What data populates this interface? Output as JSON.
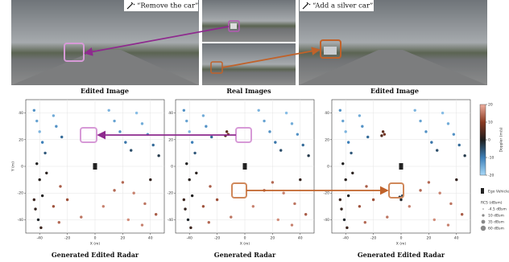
{
  "figure": {
    "prompts": [
      "“Remove the car”",
      "“Add a silver car”"
    ],
    "image_captions": [
      "Edited Image",
      "Real Images",
      "Edited Image"
    ]
  },
  "chart_data": [
    {
      "type": "scatter",
      "caption": "Generated Edited Radar",
      "x_label": "X (m)",
      "y_label": "Y (m)",
      "xlim": [
        -50,
        50
      ],
      "ylim": [
        -50,
        50
      ],
      "xticks": [
        -40,
        -20,
        0,
        20,
        40
      ],
      "yticks": [
        -40,
        -20,
        0,
        20,
        40
      ],
      "grid": true,
      "x": [
        -44,
        -42,
        -40,
        -38,
        -36,
        -30,
        -28,
        -24,
        -42,
        -40,
        -38,
        -43,
        -41,
        -39,
        -30,
        -26,
        10,
        14,
        18,
        22,
        26,
        30,
        34,
        38,
        42,
        46,
        20,
        28,
        36,
        44,
        -20,
        -10,
        6,
        14,
        24,
        34,
        40,
        -35,
        -25,
        -44
      ],
      "y": [
        42,
        34,
        26,
        18,
        10,
        38,
        30,
        22,
        2,
        -10,
        -22,
        -32,
        -40,
        -46,
        -30,
        -42,
        42,
        34,
        26,
        18,
        12,
        40,
        32,
        24,
        16,
        8,
        -12,
        -20,
        -28,
        -36,
        -25,
        -38,
        -30,
        -18,
        -40,
        -44,
        -10,
        -5,
        -15,
        -25
      ],
      "doppler": [
        -12,
        -14,
        -16,
        -10,
        -6,
        -15,
        -12,
        -8,
        0,
        1,
        0,
        2,
        -1,
        3,
        12,
        14,
        -16,
        -14,
        -12,
        -9,
        -5,
        -17,
        -15,
        -12,
        -8,
        -3,
        14,
        16,
        15,
        13,
        12,
        15,
        16,
        14,
        17,
        16,
        2,
        1,
        13,
        3
      ],
      "ego": {
        "x": 0,
        "y": 0
      }
    },
    {
      "type": "scatter",
      "caption": "Generated Radar",
      "x_label": "X (m)",
      "xlim": [
        -50,
        50
      ],
      "ylim": [
        -50,
        50
      ],
      "xticks": [
        -40,
        -20,
        0,
        20,
        40
      ],
      "yticks": [
        -40,
        -20,
        0,
        20,
        40
      ],
      "grid": true,
      "x": [
        -44,
        -42,
        -40,
        -38,
        -36,
        -30,
        -28,
        -24,
        -42,
        -40,
        -38,
        -43,
        -41,
        -39,
        -30,
        -26,
        10,
        14,
        18,
        22,
        26,
        30,
        34,
        38,
        42,
        46,
        20,
        28,
        36,
        44,
        -20,
        -10,
        6,
        14,
        24,
        34,
        40,
        -35,
        -25,
        -44,
        -13,
        -12,
        -14
      ],
      "y": [
        42,
        34,
        26,
        18,
        10,
        38,
        30,
        22,
        2,
        -10,
        -22,
        -32,
        -40,
        -46,
        -30,
        -42,
        42,
        34,
        26,
        18,
        12,
        40,
        32,
        24,
        16,
        8,
        -12,
        -20,
        -28,
        -36,
        -25,
        -38,
        -30,
        -18,
        -40,
        -44,
        -10,
        -5,
        -15,
        -25,
        26,
        24,
        23
      ],
      "doppler": [
        -12,
        -14,
        -16,
        -10,
        -6,
        -15,
        -12,
        -8,
        0,
        1,
        0,
        2,
        -1,
        3,
        12,
        14,
        -16,
        -14,
        -12,
        -9,
        -5,
        -17,
        -15,
        -12,
        -8,
        -3,
        14,
        16,
        15,
        13,
        12,
        15,
        16,
        14,
        17,
        16,
        2,
        1,
        13,
        3,
        6,
        8,
        5
      ],
      "ego": {
        "x": 0,
        "y": 0
      }
    },
    {
      "type": "scatter",
      "caption": "Generated Edited Radar",
      "x_label": "X (m)",
      "xlim": [
        -50,
        50
      ],
      "ylim": [
        -50,
        50
      ],
      "xticks": [
        -40,
        -20,
        0,
        20,
        40
      ],
      "yticks": [
        -40,
        -20,
        0,
        20,
        40
      ],
      "grid": true,
      "x": [
        -44,
        -42,
        -40,
        -38,
        -36,
        -30,
        -28,
        -24,
        -42,
        -40,
        -38,
        -43,
        -41,
        -39,
        -30,
        -26,
        10,
        14,
        18,
        22,
        26,
        30,
        34,
        38,
        42,
        46,
        20,
        28,
        36,
        44,
        -20,
        -10,
        6,
        14,
        24,
        34,
        40,
        -35,
        -25,
        -44,
        -13,
        -12,
        -14,
        -1,
        1,
        0
      ],
      "y": [
        42,
        34,
        26,
        18,
        10,
        38,
        30,
        22,
        2,
        -10,
        -22,
        -32,
        -40,
        -46,
        -30,
        -42,
        42,
        34,
        26,
        18,
        12,
        40,
        32,
        24,
        16,
        8,
        -12,
        -20,
        -28,
        -36,
        -25,
        -38,
        -30,
        -18,
        -40,
        -44,
        -10,
        -5,
        -15,
        -25,
        26,
        24,
        23,
        -23,
        -22,
        -25
      ],
      "doppler": [
        -12,
        -14,
        -16,
        -10,
        -6,
        -15,
        -12,
        -8,
        0,
        1,
        0,
        2,
        -1,
        3,
        12,
        14,
        -16,
        -14,
        -12,
        -9,
        -5,
        -17,
        -15,
        -12,
        -8,
        -3,
        14,
        16,
        15,
        13,
        12,
        15,
        16,
        14,
        17,
        16,
        2,
        1,
        13,
        3,
        6,
        8,
        5,
        -2,
        -3,
        -1
      ],
      "ego": {
        "x": 0,
        "y": 0
      },
      "colorbar": {
        "label": "Doppler (m/s)",
        "clim": [
          -20,
          20
        ],
        "ticks": [
          -20,
          -10,
          0,
          10,
          20
        ],
        "colors": [
          "#a8d8f8",
          "#3c7fb8",
          "#1e1e1e",
          "#8a3a22",
          "#f0b0a0"
        ]
      },
      "legend": {
        "ego": "Ego Vehicle",
        "title": "RCS (dBsm)",
        "entries": [
          "-4.5 dBsm",
          "10 dBsm",
          "35 dBsm",
          "60 dBsm"
        ]
      }
    }
  ]
}
